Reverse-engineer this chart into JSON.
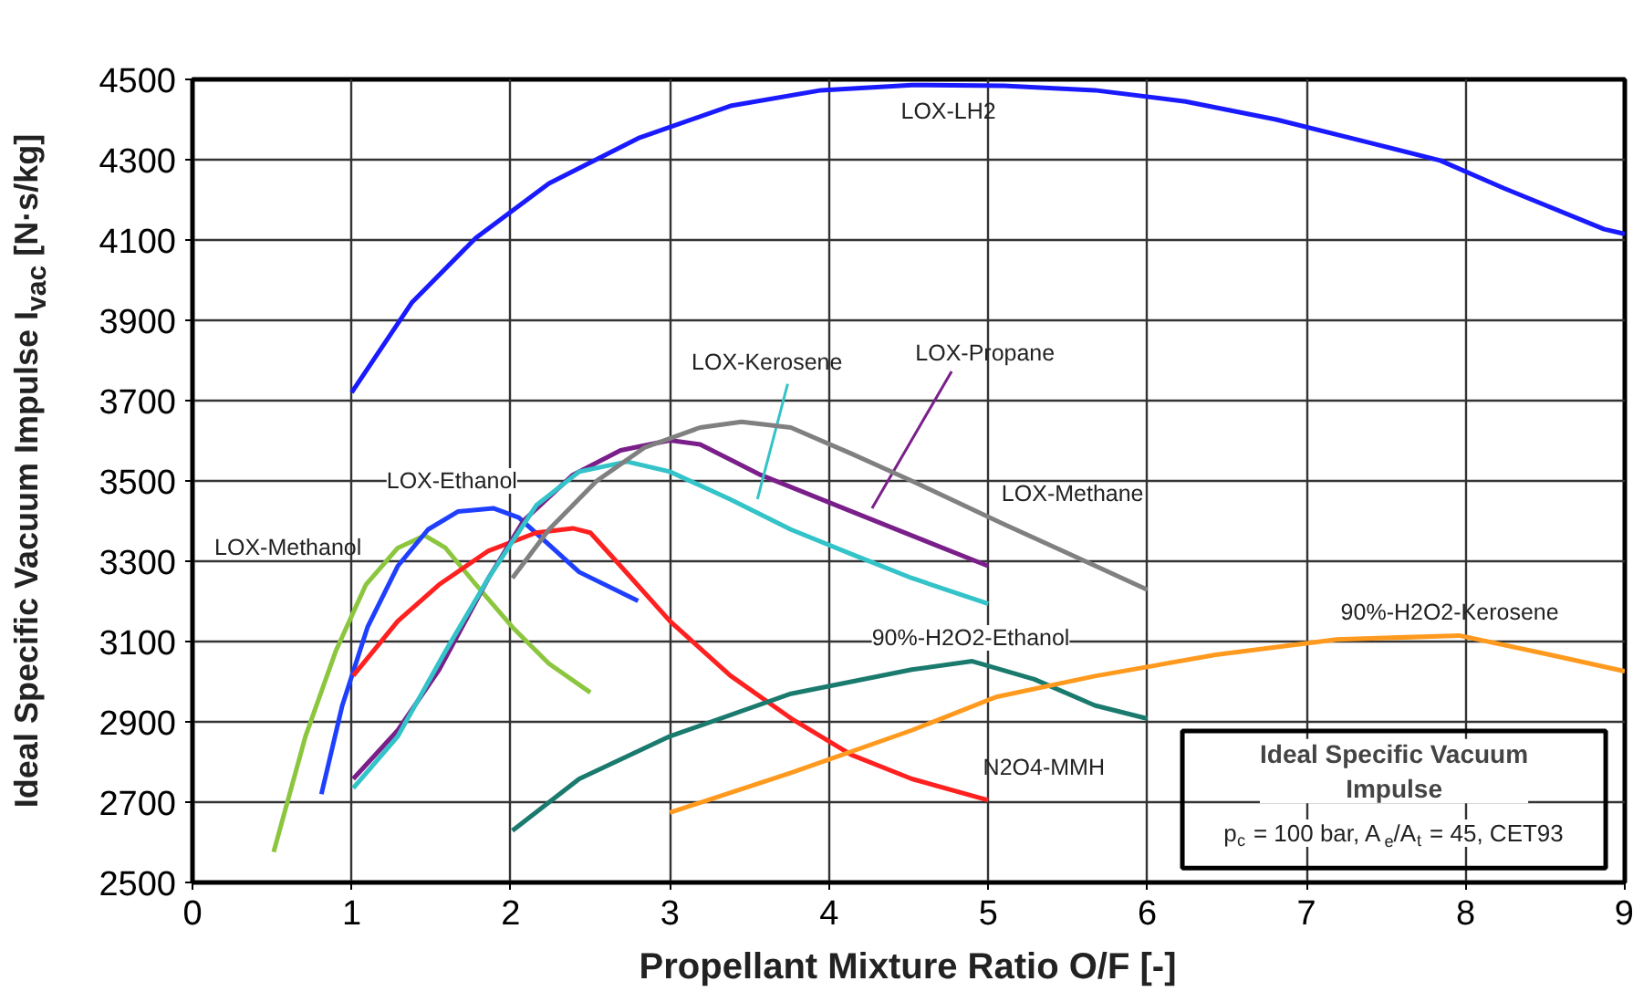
{
  "chart_data": {
    "type": "line",
    "xlabel": "Propellant Mixture Ratio O/F  [-]",
    "ylabel": "Ideal Specific Vacuum Impulse I$_{vac}$  [N·s/kg]",
    "xlim": [
      0,
      9
    ],
    "ylim": [
      2500,
      4500
    ],
    "xticks": [
      0,
      1,
      2,
      3,
      4,
      5,
      6,
      7,
      8,
      9
    ],
    "yticks": [
      2500,
      2700,
      2900,
      3100,
      3300,
      3500,
      3700,
      3900,
      4100,
      4300,
      4500
    ],
    "grid": true,
    "marker": "none",
    "line_style": "solid",
    "series": [
      {
        "name": "LOX-LH2",
        "color": "#1a1aff",
        "x": [
          1.0,
          1.38,
          1.78,
          2.24,
          2.81,
          3.38,
          3.95,
          4.52,
          5.1,
          5.67,
          6.24,
          6.81,
          7.39,
          7.84,
          8.24,
          8.87,
          9.0
        ],
        "values": [
          3720,
          3945,
          4105,
          4241,
          4355,
          4434,
          4473,
          4486,
          4484,
          4473,
          4445,
          4400,
          4343,
          4298,
          4229,
          4127,
          4115
        ]
      },
      {
        "name": "LOX-Methanol",
        "color": "#8cc63f",
        "x": [
          0.51,
          0.71,
          0.9,
          1.09,
          1.29,
          1.46,
          1.59,
          1.78,
          2.01,
          2.24,
          2.5
        ],
        "values": [
          2576,
          2864,
          3076,
          3242,
          3333,
          3364,
          3333,
          3242,
          3136,
          3045,
          2973
        ]
      },
      {
        "name": "LOX-Ethanol",
        "color": "#1f3fff",
        "x": [
          0.81,
          0.94,
          1.1,
          1.29,
          1.48,
          1.67,
          1.89,
          2.05,
          2.24,
          2.43,
          2.8
        ],
        "values": [
          2720,
          2939,
          3136,
          3288,
          3379,
          3424,
          3432,
          3409,
          3341,
          3273,
          3201
        ]
      },
      {
        "name": "N2O4-MMH",
        "color": "#ff2020",
        "x": [
          1.01,
          1.29,
          1.55,
          1.86,
          2.16,
          2.39,
          2.5,
          2.69,
          3.0,
          3.38,
          3.76,
          4.14,
          4.52,
          5.0
        ],
        "values": [
          3015,
          3151,
          3242,
          3326,
          3371,
          3382,
          3371,
          3288,
          3151,
          3015,
          2909,
          2818,
          2758,
          2705
        ]
      },
      {
        "name": "LOX-Propane",
        "color": "#7a1f8a",
        "x": [
          1.01,
          1.29,
          1.55,
          1.86,
          2.08,
          2.39,
          2.69,
          3.0,
          3.19,
          3.57,
          4.14,
          4.52,
          5.0
        ],
        "values": [
          2758,
          2879,
          3030,
          3258,
          3401,
          3515,
          3576,
          3601,
          3591,
          3515,
          3424,
          3364,
          3288
        ]
      },
      {
        "name": "LOX-Kerosene",
        "color": "#33c3c8",
        "x": [
          1.01,
          1.29,
          1.59,
          1.86,
          2.16,
          2.43,
          2.73,
          3.0,
          3.38,
          3.76,
          4.14,
          4.52,
          5.0
        ],
        "values": [
          2735,
          2864,
          3076,
          3258,
          3439,
          3523,
          3548,
          3523,
          3454,
          3379,
          3318,
          3258,
          3194
        ]
      },
      {
        "name": "LOX-Methane",
        "color": "#808080",
        "x": [
          2.01,
          2.24,
          2.54,
          2.84,
          3.19,
          3.45,
          3.76,
          4.14,
          4.52,
          5.09,
          5.5,
          6.0
        ],
        "values": [
          3258,
          3379,
          3500,
          3583,
          3633,
          3647,
          3633,
          3568,
          3500,
          3394,
          3320,
          3229
        ]
      },
      {
        "name": "90%-H2O2-Ethanol",
        "color": "#1a7a6e",
        "x": [
          2.01,
          2.43,
          3.0,
          3.76,
          4.52,
          4.9,
          5.29,
          5.67,
          6.0
        ],
        "values": [
          2629,
          2758,
          2864,
          2970,
          3030,
          3051,
          3006,
          2941,
          2908
        ]
      },
      {
        "name": "90%-H2O2-Kerosene",
        "color": "#ff9a1f",
        "x": [
          3.0,
          3.76,
          4.52,
          5.05,
          5.67,
          6.43,
          7.19,
          7.96,
          8.53,
          9.0
        ],
        "values": [
          2674,
          2773,
          2879,
          2962,
          3014,
          3067,
          3105,
          3115,
          3067,
          3026
        ]
      }
    ],
    "annotations": [
      "Ideal Specific Vacuum Impulse",
      "p$_{c}$ = 100 bar,  A$_{e}$/A$_{t}$ = 45,  CET93"
    ]
  }
}
